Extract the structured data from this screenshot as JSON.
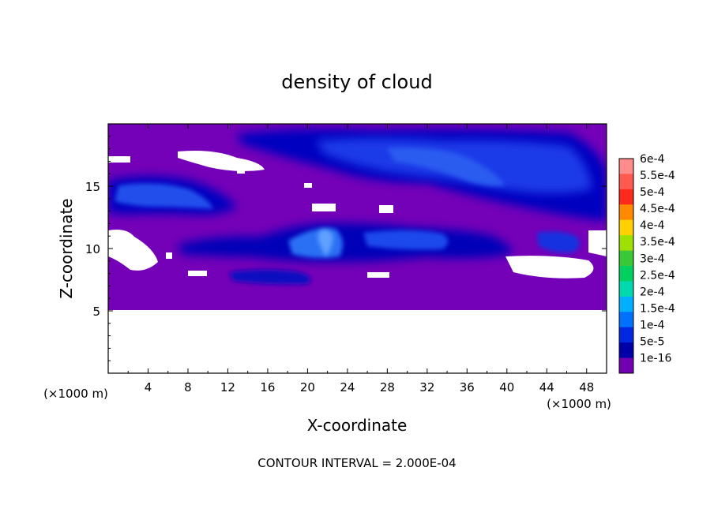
{
  "chart_data": {
    "type": "heatmap",
    "title": "density of cloud",
    "xlabel": "X-coordinate",
    "ylabel": "Z-coordinate",
    "x_unit": "(×1000 m)",
    "y_unit": "(×1000 m)",
    "x_ticks": [
      4,
      8,
      12,
      16,
      20,
      24,
      28,
      32,
      36,
      40,
      44,
      48
    ],
    "y_ticks": [
      5,
      10,
      15
    ],
    "xlim": [
      0,
      50
    ],
    "ylim": [
      0,
      20
    ],
    "footer": "CONTOUR INTERVAL = 2.000E-04",
    "colorbar": {
      "labels": [
        "6e-4",
        "5.5e-4",
        "5e-4",
        "4.5e-4",
        "4e-4",
        "3.5e-4",
        "3e-4",
        "2.5e-4",
        "2e-4",
        "1.5e-4",
        "1e-4",
        "5e-5",
        "1e-16"
      ],
      "colors": [
        "#ff8c8c",
        "#ff5a50",
        "#ff2a1e",
        "#ff8a00",
        "#ffd000",
        "#a0e000",
        "#38c838",
        "#00d060",
        "#00d8b0",
        "#00b0ff",
        "#0070ff",
        "#0028e0",
        "#0000a8",
        "#7000b0"
      ]
    },
    "no_data_below_z": 5,
    "background_color": "#7400b8"
  }
}
